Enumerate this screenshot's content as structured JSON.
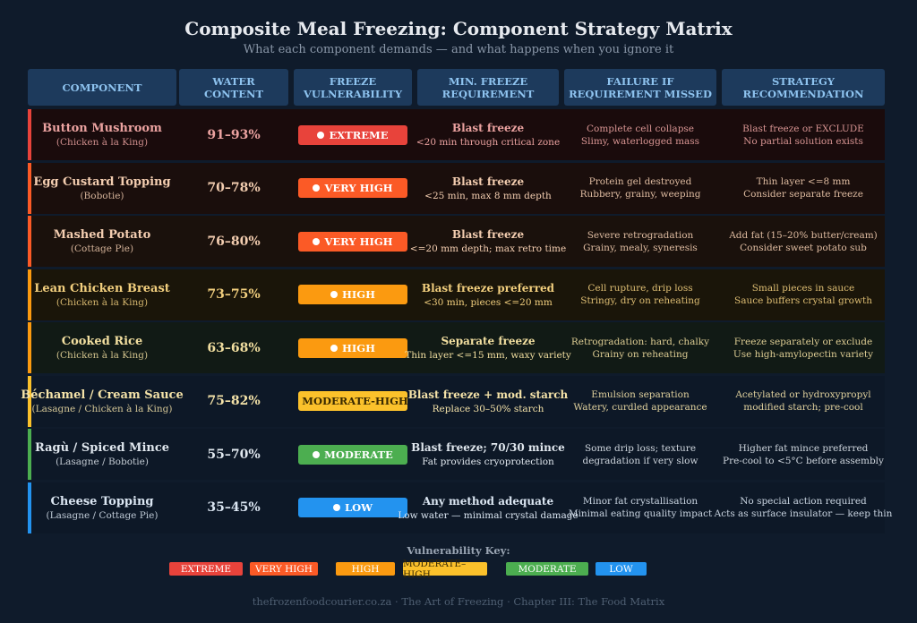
{
  "title": "Composite Meal Freezing: Component Strategy Matrix",
  "subtitle": "What each component demands — and what happens when you ignore it",
  "headers": [
    "COMPONENT",
    "WATER\nCONTENT",
    "FREEZE\nVULNERABILITY",
    "MIN. FREEZE\nREQUIREMENT",
    "FAILURE IF\nREQUIREMENT MISSED",
    "STRATEGY\nRECOMMENDATION"
  ],
  "colors": {
    "EXTREME": "#e8433b",
    "VERY HIGH": "#fb5a26",
    "HIGH": "#fb9a10",
    "MODERATE-HIGH": "#fbc12b",
    "MODERATE": "#4cae50",
    "LOW": "#2393ef"
  },
  "rows": [
    {
      "name": "Button Mushroom",
      "dish": "(Chicken à la King)",
      "water": "91–93%",
      "level": "EXTREME",
      "req": "Blast freeze",
      "req2": "<20 min through critical zone",
      "fail1": "Complete cell collapse",
      "fail2": "Slimy, waterlogged mass",
      "strat1": "Blast freeze or EXCLUDE",
      "strat2": "No partial solution exists"
    },
    {
      "name": "Egg Custard Topping",
      "dish": "(Bobotie)",
      "water": "70–78%",
      "level": "VERY HIGH",
      "req": "Blast freeze",
      "req2": "<25 min, max 8 mm depth",
      "fail1": "Protein gel destroyed",
      "fail2": "Rubbery, grainy, weeping",
      "strat1": "Thin layer <=8 mm",
      "strat2": "Consider separate freeze"
    },
    {
      "name": "Mashed Potato",
      "dish": "(Cottage Pie)",
      "water": "76–80%",
      "level": "VERY HIGH",
      "req": "Blast freeze",
      "req2": "<=20 mm depth; max retro time",
      "fail1": "Severe retrogradation",
      "fail2": "Grainy, mealy, syneresis",
      "strat1": "Add fat (15–20% butter/cream)",
      "strat2": "Consider sweet potato sub"
    },
    {
      "name": "Lean Chicken Breast",
      "dish": "(Chicken à la King)",
      "water": "73–75%",
      "level": "HIGH",
      "req": "Blast freeze preferred",
      "req2": "<30 min, pieces <=20 mm",
      "fail1": "Cell rupture, drip loss",
      "fail2": "Stringy, dry on reheating",
      "strat1": "Small pieces in sauce",
      "strat2": "Sauce buffers crystal growth"
    },
    {
      "name": "Cooked Rice",
      "dish": "(Chicken à la King)",
      "water": "63–68%",
      "level": "HIGH",
      "req": "Separate freeze",
      "req2": "Thin layer <=15 mm, waxy variety",
      "fail1": "Retrogradation: hard, chalky",
      "fail2": "Grainy on reheating",
      "strat1": "Freeze separately or exclude",
      "strat2": "Use high-amylopectin variety"
    },
    {
      "name": "Béchamel / Cream Sauce",
      "dish": "(Lasagne / Chicken à la King)",
      "water": "75–82%",
      "level": "MODERATE-HIGH",
      "req": "Blast freeze + mod. starch",
      "req2": "Replace 30–50% starch",
      "fail1": "Emulsion separation",
      "fail2": "Watery, curdled appearance",
      "strat1": "Acetylated or hydroxypropyl",
      "strat2": "modified starch; pre-cool"
    },
    {
      "name": "Ragù / Spiced Mince",
      "dish": "(Lasagne / Bobotie)",
      "water": "55–70%",
      "level": "MODERATE",
      "req": "Blast freeze; 70/30 mince",
      "req2": "Fat provides cryoprotection",
      "fail1": "Some drip loss; texture",
      "fail2": "degradation if very slow",
      "strat1": "Higher fat mince preferred",
      "strat2": "Pre-cool to <5°C before assembly"
    },
    {
      "name": "Cheese Topping",
      "dish": "(Lasagne / Cottage Pie)",
      "water": "35–45%",
      "level": "LOW",
      "req": "Any method adequate",
      "req2": "Low water — minimal crystal damage",
      "fail1": "Minor fat crystallisation",
      "fail2": "Minimal eating quality impact",
      "strat1": "No special action required",
      "strat2": "Acts as surface insulator — keep thin"
    }
  ],
  "key": {
    "title": "Vulnerability Key:",
    "items": [
      "EXTREME",
      "VERY HIGH",
      "HIGH",
      "MODERATE–HIGH",
      "MODERATE",
      "LOW"
    ]
  },
  "footer": "thefrozenfoodcourier.co.za · The Art of Freezing · Chapter III: The Food Matrix"
}
